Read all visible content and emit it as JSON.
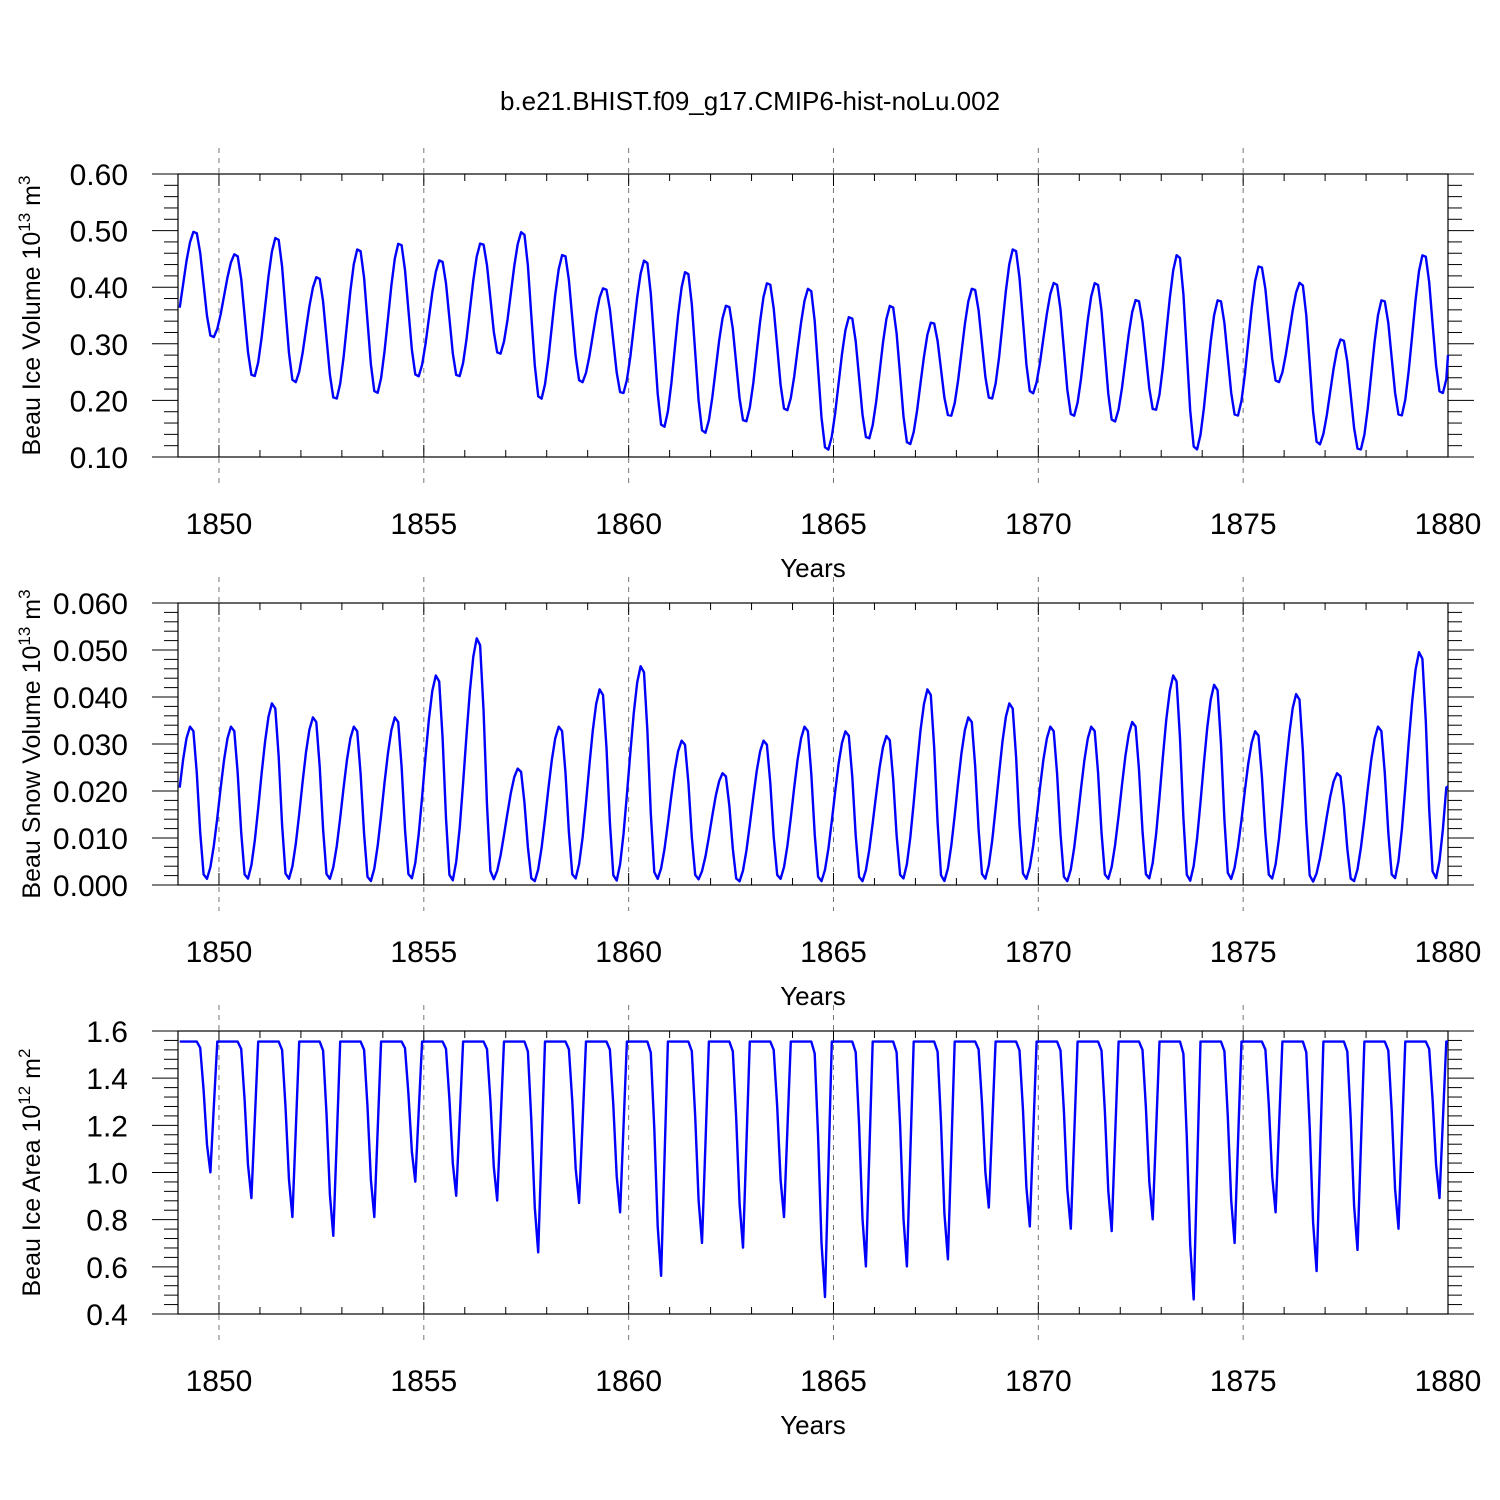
{
  "chart_data": {
    "type": "line",
    "title": "b.e21.BHIST.f09_g17.CMIP6-hist-noLu.002",
    "line_color": "#0000ff",
    "x_start": 1849.0417,
    "x_step_months": 1,
    "panels": [
      {
        "ylabel": "Beau Ice Volume 10",
        "ylabel_exponent": "13",
        "ylabel_unit": "m",
        "ylabel_unit_exponent": "3",
        "xlabel": "Years",
        "xlim": [
          1849,
          1880
        ],
        "ylim": [
          0.1,
          0.6
        ],
        "xticks": [
          "1850",
          "1855",
          "1860",
          "1865",
          "1870",
          "1875",
          "1880"
        ],
        "yticks": [
          "0.10",
          "0.20",
          "0.30",
          "0.40",
          "0.50",
          "0.60"
        ],
        "min_month": 10,
        "max_month": 5,
        "max_values": [
          0.5,
          0.46,
          0.49,
          0.42,
          0.47,
          0.48,
          0.45,
          0.48,
          0.5,
          0.46,
          0.4,
          0.45,
          0.43,
          0.37,
          0.41,
          0.4,
          0.35,
          0.37,
          0.34,
          0.4,
          0.47,
          0.41,
          0.41,
          0.38,
          0.46,
          0.38,
          0.44,
          0.41,
          0.31,
          0.38,
          0.46
        ],
        "min_values": [
          0.31,
          0.24,
          0.23,
          0.2,
          0.21,
          0.24,
          0.24,
          0.28,
          0.2,
          0.23,
          0.21,
          0.15,
          0.14,
          0.16,
          0.18,
          0.11,
          0.13,
          0.12,
          0.17,
          0.2,
          0.21,
          0.17,
          0.16,
          0.18,
          0.11,
          0.17,
          0.23,
          0.12,
          0.11,
          0.17,
          0.21
        ],
        "end_value": 0.28
      },
      {
        "ylabel": "Beau Snow Volume 10",
        "ylabel_exponent": "13",
        "ylabel_unit": "m",
        "ylabel_unit_exponent": "3",
        "xlabel": "Years",
        "xlim": [
          1849,
          1880
        ],
        "ylim": [
          0.0,
          0.06
        ],
        "xticks": [
          "1850",
          "1855",
          "1860",
          "1865",
          "1870",
          "1875",
          "1880"
        ],
        "yticks": [
          "0.000",
          "0.010",
          "0.020",
          "0.030",
          "0.040",
          "0.050",
          "0.060"
        ],
        "min_month": 8,
        "max_month": 4,
        "max_values": [
          0.034,
          0.034,
          0.039,
          0.036,
          0.034,
          0.036,
          0.045,
          0.053,
          0.025,
          0.034,
          0.042,
          0.047,
          0.031,
          0.024,
          0.031,
          0.034,
          0.033,
          0.032,
          0.042,
          0.036,
          0.039,
          0.034,
          0.034,
          0.035,
          0.045,
          0.043,
          0.033,
          0.041,
          0.024,
          0.034,
          0.05
        ],
        "min_values": [
          0.001,
          0.001,
          0.001,
          0.001,
          0.0005,
          0.001,
          0.0005,
          0.001,
          0.0005,
          0.001,
          0.0005,
          0.001,
          0.001,
          0.0005,
          0.001,
          0.0005,
          0.0005,
          0.001,
          0.0005,
          0.001,
          0.001,
          0.0005,
          0.001,
          0.001,
          0.0005,
          0.001,
          0.001,
          0.0005,
          0.0005,
          0.001,
          0.001
        ],
        "end_value": 0.021
      },
      {
        "ylabel": "Beau Ice Area 10",
        "ylabel_exponent": "12",
        "ylabel_unit": "m",
        "ylabel_unit_exponent": "2",
        "xlabel": "Years",
        "xlim": [
          1849,
          1880
        ],
        "ylim": [
          0.4,
          1.6
        ],
        "xticks": [
          "1850",
          "1855",
          "1860",
          "1865",
          "1870",
          "1875",
          "1880"
        ],
        "yticks": [
          "0.4",
          "0.6",
          "0.8",
          "1.0",
          "1.2",
          "1.4",
          "1.6"
        ],
        "plateau_value": 1.555,
        "min_values": [
          1.0,
          0.89,
          0.81,
          0.73,
          0.81,
          0.96,
          0.9,
          0.88,
          0.66,
          0.87,
          0.83,
          0.56,
          0.7,
          0.68,
          0.81,
          0.47,
          0.6,
          0.6,
          0.63,
          0.85,
          0.77,
          0.76,
          0.75,
          0.8,
          0.46,
          0.7,
          0.83,
          0.58,
          0.67,
          0.76,
          0.89
        ],
        "end_value": 1.555
      }
    ]
  }
}
